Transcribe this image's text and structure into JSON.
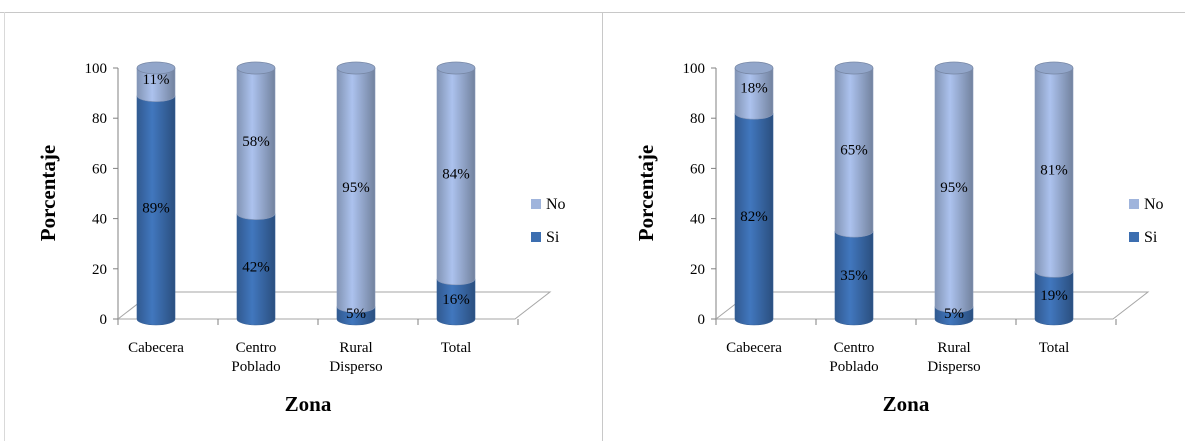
{
  "chart_data": [
    {
      "type": "bar",
      "stacked": true,
      "style": "3d-cylinder",
      "categories": [
        "Cabecera",
        "Centro Poblado",
        "Rural Disperso",
        "Total"
      ],
      "category_lines": [
        [
          "Cabecera"
        ],
        [
          "Centro",
          "Poblado"
        ],
        [
          "Rural",
          "Disperso"
        ],
        [
          "Total"
        ]
      ],
      "series": [
        {
          "name": "Si",
          "values": [
            89,
            42,
            5,
            16
          ],
          "labels": [
            "89%",
            "42%",
            "5%",
            "16%"
          ],
          "color": "#3c6eb0"
        },
        {
          "name": "No",
          "values": [
            11,
            58,
            95,
            84
          ],
          "labels": [
            "11%",
            "58%",
            "95%",
            "84%"
          ],
          "color": "#9fb4dc"
        }
      ],
      "xlabel": "Zona",
      "ylabel": "Porcentaje",
      "ylim": [
        0,
        100
      ],
      "yticks": [
        "0",
        "20",
        "40",
        "60",
        "80",
        "100"
      ],
      "legend": {
        "position": "right",
        "entries": [
          "No",
          "Si"
        ]
      }
    },
    {
      "type": "bar",
      "stacked": true,
      "style": "3d-cylinder",
      "categories": [
        "Cabecera",
        "Centro Poblado",
        "Rural Disperso",
        "Total"
      ],
      "category_lines": [
        [
          "Cabecera"
        ],
        [
          "Centro",
          "Poblado"
        ],
        [
          "Rural",
          "Disperso"
        ],
        [
          "Total"
        ]
      ],
      "series": [
        {
          "name": "Si",
          "values": [
            82,
            35,
            5,
            19
          ],
          "labels": [
            "82%",
            "35%",
            "5%",
            "19%"
          ],
          "color": "#3c6eb0"
        },
        {
          "name": "No",
          "values": [
            18,
            65,
            95,
            81
          ],
          "labels": [
            "18%",
            "65%",
            "95%",
            "81%"
          ],
          "color": "#9fb4dc"
        }
      ],
      "xlabel": "Zona",
      "ylabel": "Porcentaje",
      "ylim": [
        0,
        100
      ],
      "yticks": [
        "0",
        "20",
        "40",
        "60",
        "80",
        "100"
      ],
      "legend": {
        "position": "right",
        "entries": [
          "No",
          "Si"
        ]
      }
    }
  ]
}
